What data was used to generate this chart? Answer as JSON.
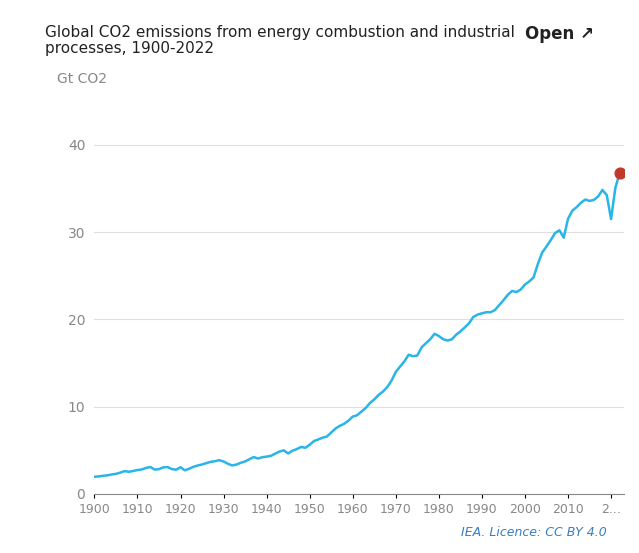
{
  "title_line1": "Global CO2 emissions from energy combustion and industrial",
  "title_line2": "processes, 1900-2022",
  "ylabel": "Gt CO2",
  "open_label": "Open ↗",
  "credit": "IEA. Licence: CC BY 4.0",
  "line_color": "#29b5e8",
  "dot_color": "#c0392b",
  "background_color": "#ffffff",
  "axis_label_color": "#888888",
  "title_color": "#222222",
  "ylim": [
    0,
    45
  ],
  "yticks": [
    0,
    10,
    20,
    30,
    40
  ],
  "xtick_labels": [
    "1900",
    "1910",
    "1920",
    "1930",
    "1940",
    "1950",
    "1960",
    "1970",
    "1980",
    "1990",
    "2000",
    "2010",
    "2..."
  ],
  "years": [
    1900,
    1901,
    1902,
    1903,
    1904,
    1905,
    1906,
    1907,
    1908,
    1909,
    1910,
    1911,
    1912,
    1913,
    1914,
    1915,
    1916,
    1917,
    1918,
    1919,
    1920,
    1921,
    1922,
    1923,
    1924,
    1925,
    1926,
    1927,
    1928,
    1929,
    1930,
    1931,
    1932,
    1933,
    1934,
    1935,
    1936,
    1937,
    1938,
    1939,
    1940,
    1941,
    1942,
    1943,
    1944,
    1945,
    1946,
    1947,
    1948,
    1949,
    1950,
    1951,
    1952,
    1953,
    1954,
    1955,
    1956,
    1957,
    1958,
    1959,
    1960,
    1961,
    1962,
    1963,
    1964,
    1965,
    1966,
    1967,
    1968,
    1969,
    1970,
    1971,
    1972,
    1973,
    1974,
    1975,
    1976,
    1977,
    1978,
    1979,
    1980,
    1981,
    1982,
    1983,
    1984,
    1985,
    1986,
    1987,
    1988,
    1989,
    1990,
    1991,
    1992,
    1993,
    1994,
    1995,
    1996,
    1997,
    1998,
    1999,
    2000,
    2001,
    2002,
    2003,
    2004,
    2005,
    2006,
    2007,
    2008,
    2009,
    2010,
    2011,
    2012,
    2013,
    2014,
    2015,
    2016,
    2017,
    2018,
    2019,
    2020,
    2021,
    2022
  ],
  "values": [
    1.96,
    2.0,
    2.07,
    2.12,
    2.22,
    2.29,
    2.43,
    2.61,
    2.53,
    2.62,
    2.73,
    2.8,
    2.97,
    3.08,
    2.78,
    2.83,
    3.04,
    3.07,
    2.84,
    2.77,
    3.05,
    2.7,
    2.88,
    3.1,
    3.25,
    3.37,
    3.52,
    3.67,
    3.74,
    3.86,
    3.71,
    3.45,
    3.26,
    3.36,
    3.56,
    3.71,
    3.97,
    4.22,
    4.05,
    4.2,
    4.27,
    4.36,
    4.61,
    4.85,
    4.99,
    4.63,
    4.95,
    5.13,
    5.38,
    5.28,
    5.63,
    6.05,
    6.24,
    6.44,
    6.57,
    7.03,
    7.49,
    7.8,
    8.03,
    8.39,
    8.86,
    9.01,
    9.42,
    9.84,
    10.41,
    10.83,
    11.34,
    11.72,
    12.23,
    12.97,
    13.98,
    14.6,
    15.19,
    15.95,
    15.78,
    15.86,
    16.8,
    17.27,
    17.73,
    18.35,
    18.09,
    17.73,
    17.58,
    17.71,
    18.24,
    18.62,
    19.07,
    19.55,
    20.28,
    20.55,
    20.7,
    20.82,
    20.82,
    21.06,
    21.63,
    22.19,
    22.81,
    23.26,
    23.13,
    23.42,
    24.0,
    24.35,
    24.82,
    26.37,
    27.66,
    28.36,
    29.1,
    29.9,
    30.22,
    29.37,
    31.53,
    32.46,
    32.87,
    33.37,
    33.74,
    33.58,
    33.7,
    34.1,
    34.85,
    34.24,
    31.5,
    35.1,
    36.8
  ],
  "highlight_year": 2022,
  "highlight_value": 36.8
}
